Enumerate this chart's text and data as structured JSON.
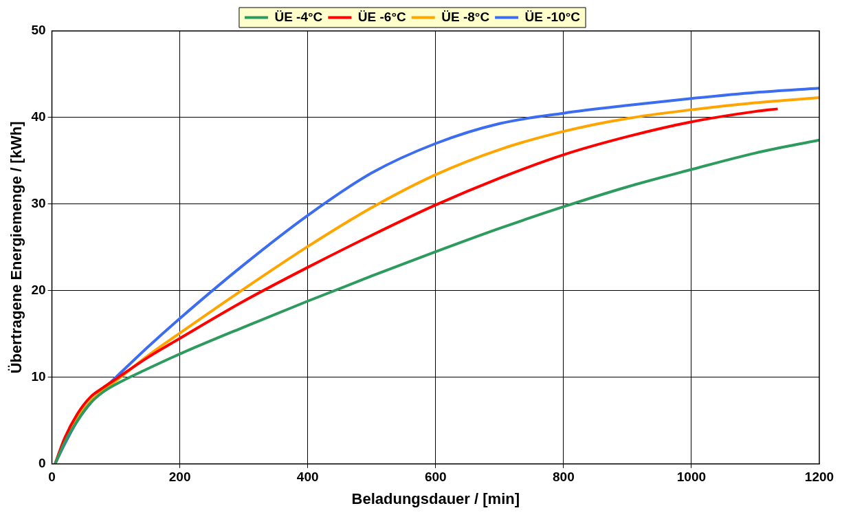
{
  "chart_data": {
    "type": "line",
    "xlabel": "Beladungsdauer / [min]",
    "ylabel": "Übertragene Energiemenge / [kWh]",
    "xlim": [
      0,
      1200
    ],
    "xticks": [
      0,
      200,
      400,
      600,
      800,
      1000,
      1200
    ],
    "ylim": [
      0,
      50
    ],
    "yticks": [
      0,
      10,
      20,
      30,
      40,
      50
    ],
    "grid": true,
    "legend": "top",
    "marker": "none",
    "line_style": "solid",
    "series": [
      {
        "name": "ÜE -4°C",
        "color": "#2e9b5e",
        "x": [
          5,
          20,
          40,
          60,
          80,
          100,
          150,
          200,
          300,
          400,
          500,
          600,
          700,
          800,
          900,
          1000,
          1100,
          1200
        ],
        "values": [
          0,
          2.5,
          5,
          7,
          8.3,
          9.2,
          11,
          12.7,
          15.8,
          18.8,
          21.7,
          24.5,
          27.2,
          29.7,
          32,
          34,
          35.9,
          37.4
        ]
      },
      {
        "name": "ÜE -6°C",
        "color": "#ff0000",
        "x": [
          5,
          20,
          40,
          60,
          80,
          100,
          150,
          200,
          300,
          400,
          500,
          600,
          700,
          800,
          900,
          1000,
          1100,
          1135
        ],
        "values": [
          0,
          3,
          5.8,
          7.7,
          8.8,
          9.8,
          12.3,
          14.5,
          18.8,
          22.7,
          26.4,
          29.9,
          33,
          35.7,
          37.8,
          39.5,
          40.7,
          41
        ]
      },
      {
        "name": "ÜE -8°C",
        "color": "#ffa500",
        "x": [
          5,
          20,
          40,
          60,
          80,
          100,
          150,
          200,
          300,
          400,
          500,
          600,
          700,
          800,
          900,
          1000,
          1100,
          1200
        ],
        "values": [
          0,
          2.6,
          5.3,
          7.2,
          8.5,
          9.6,
          12.5,
          15.1,
          20.2,
          25.1,
          29.6,
          33.4,
          36.3,
          38.4,
          39.9,
          40.9,
          41.7,
          42.3
        ]
      },
      {
        "name": "ÜE -10°C",
        "color": "#3c6cf0",
        "x": [
          5,
          20,
          40,
          60,
          80,
          100,
          150,
          200,
          300,
          400,
          500,
          600,
          700,
          800,
          900,
          1000,
          1100,
          1200
        ],
        "values": [
          0,
          2.3,
          5,
          7,
          8.6,
          10,
          13.5,
          16.8,
          23,
          28.7,
          33.6,
          37,
          39.3,
          40.5,
          41.4,
          42.2,
          42.9,
          43.4
        ]
      }
    ]
  }
}
